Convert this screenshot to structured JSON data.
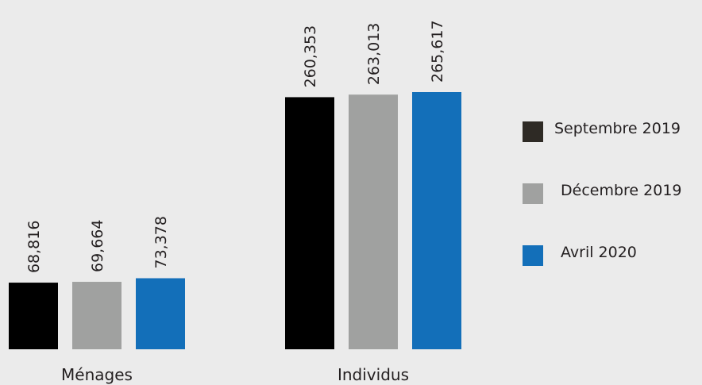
{
  "chart_data": {
    "type": "bar",
    "categories": [
      "Ménages",
      "Individus"
    ],
    "series": [
      {
        "name": "Septembre 2019",
        "color": "#000000",
        "values": [
          68816,
          260353
        ]
      },
      {
        "name": "Décembre 2019",
        "color": "#a0a1a0",
        "values": [
          69664,
          263013
        ]
      },
      {
        "name": "Avril 2020",
        "color": "#136fb9",
        "values": [
          73378,
          265617
        ]
      }
    ],
    "value_labels": [
      [
        "68,816",
        "260,353"
      ],
      [
        "69,664",
        "263,013"
      ],
      [
        "73,378",
        "265,617"
      ]
    ],
    "title": "",
    "xlabel": "",
    "ylabel": "",
    "ylim": [
      0,
      265617
    ],
    "grid": false,
    "legend_position": "right"
  },
  "legend": {
    "items": [
      {
        "label": "Septembre 2019",
        "color": "#2e2a25"
      },
      {
        "label": "Décembre 2019",
        "color": "#a0a1a0"
      },
      {
        "label": "Avril 2020",
        "color": "#136fb9"
      }
    ]
  }
}
